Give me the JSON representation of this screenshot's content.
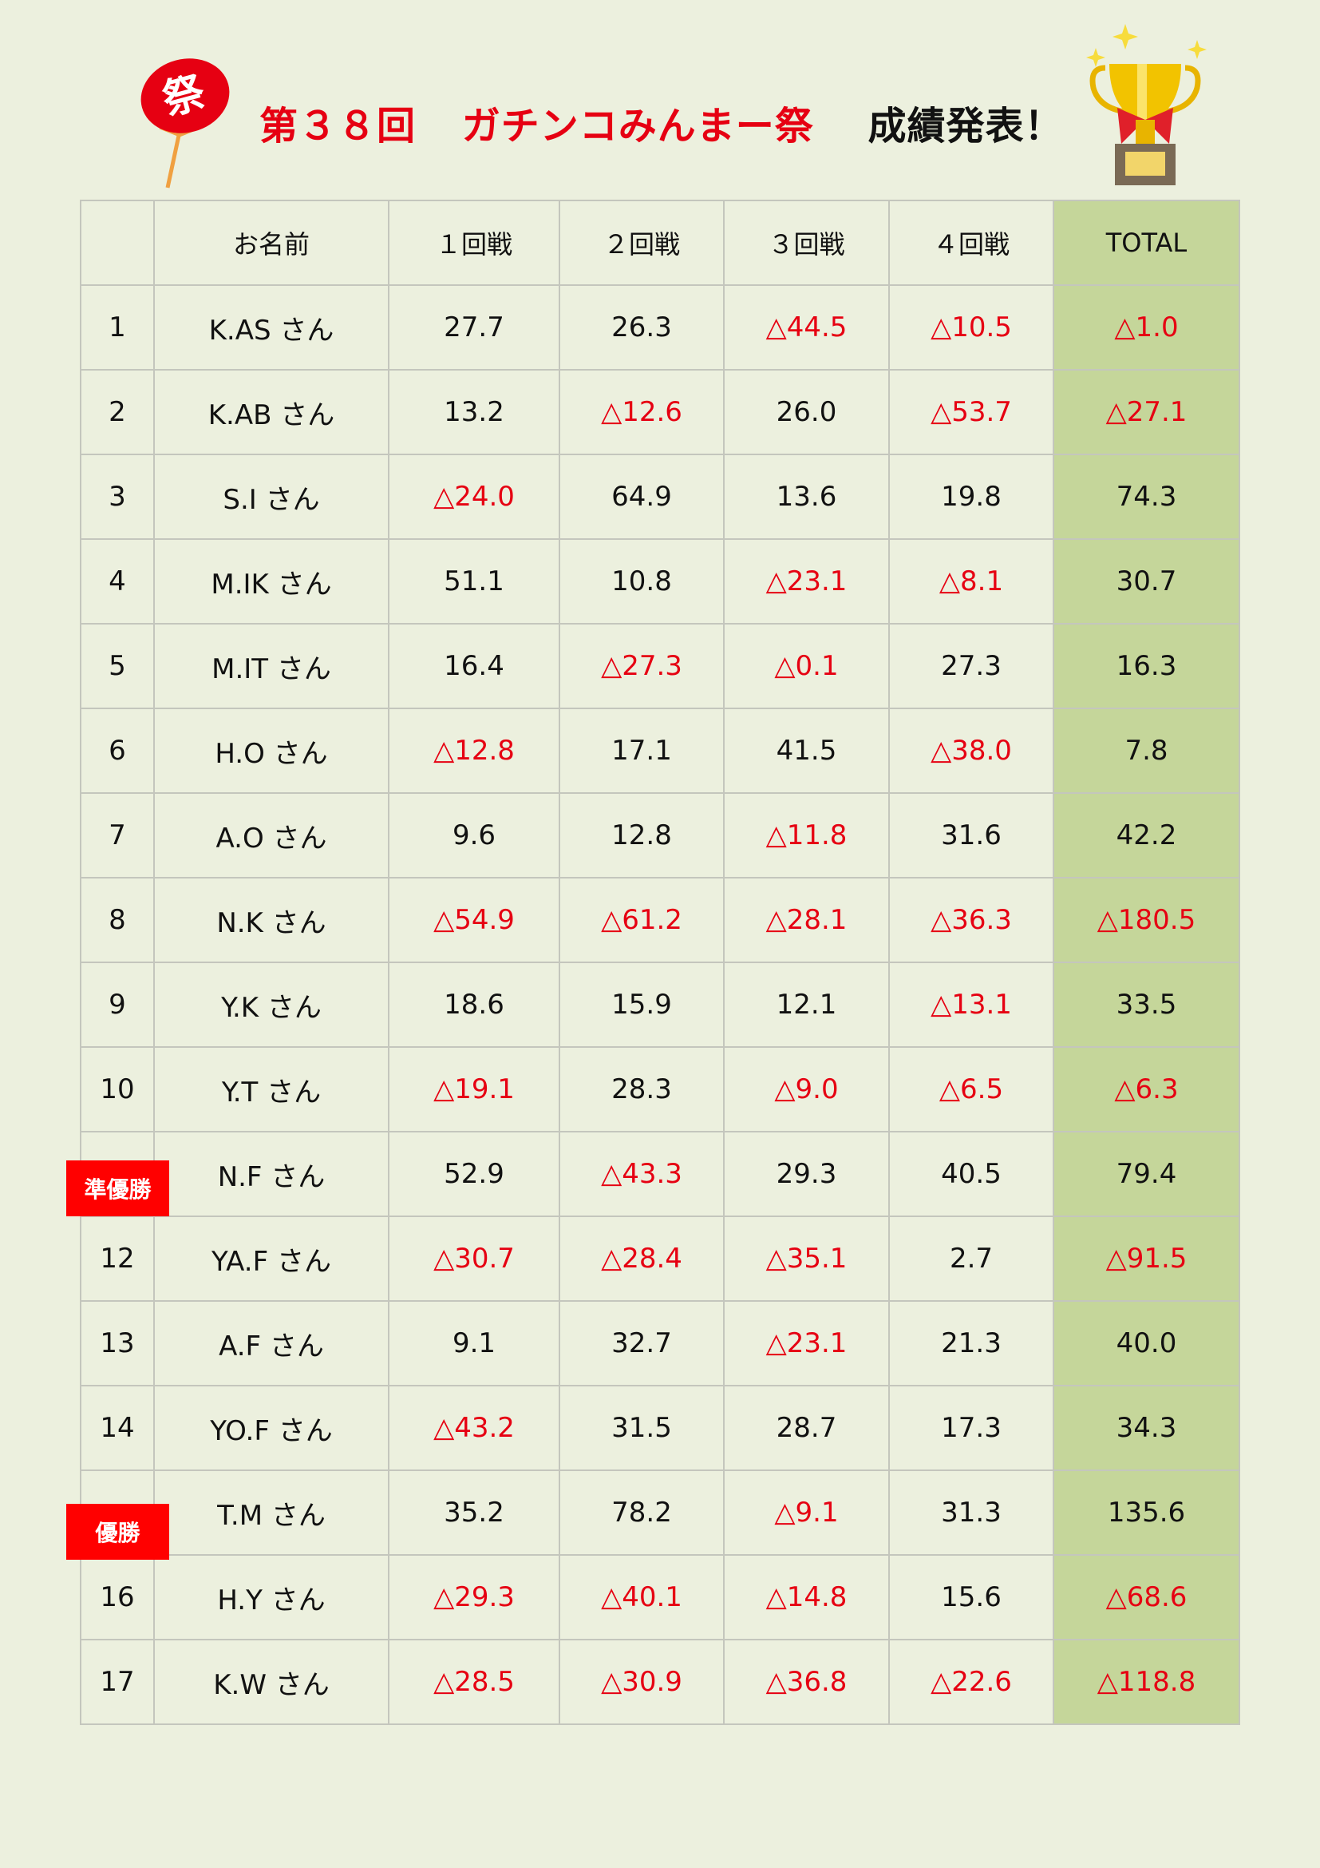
{
  "header": {
    "title_red_1": "第３８回",
    "title_red_2": "ガチンコみんまー祭",
    "title_black": "成績発表！",
    "fan_text": "祭",
    "accent_color": "#e60012",
    "total_column_color": "#c5d69a"
  },
  "table": {
    "columns": [
      "",
      "お名前",
      "１回戦",
      "２回戦",
      "３回戦",
      "４回戦",
      "TOTAL"
    ],
    "rows": [
      [
        "1",
        "K.AS さん",
        "27.7",
        "26.3",
        "△44.5",
        "△10.5",
        "△1.0"
      ],
      [
        "2",
        "K.AB さん",
        "13.2",
        "△12.6",
        "26.0",
        "△53.7",
        "△27.1"
      ],
      [
        "3",
        "S.I さん",
        "△24.0",
        "64.9",
        "13.6",
        "19.8",
        "74.3"
      ],
      [
        "4",
        "M.IK さん",
        "51.1",
        "10.8",
        "△23.1",
        "△8.1",
        "30.7"
      ],
      [
        "5",
        "M.IT さん",
        "16.4",
        "△27.3",
        "△0.1",
        "27.3",
        "16.3"
      ],
      [
        "6",
        "H.O さん",
        "△12.8",
        "17.1",
        "41.5",
        "△38.0",
        "7.8"
      ],
      [
        "7",
        "A.O さん",
        "9.6",
        "12.8",
        "△11.8",
        "31.6",
        "42.2"
      ],
      [
        "8",
        "N.K さん",
        "△54.9",
        "△61.2",
        "△28.1",
        "△36.3",
        "△180.5"
      ],
      [
        "9",
        "Y.K さん",
        "18.6",
        "15.9",
        "12.1",
        "△13.1",
        "33.5"
      ],
      [
        "10",
        "Y.T さん",
        "△19.1",
        "28.3",
        "△9.0",
        "△6.5",
        "△6.3"
      ],
      [
        "",
        "N.F さん",
        "52.9",
        "△43.3",
        "29.3",
        "40.5",
        "79.4"
      ],
      [
        "12",
        "YA.F さん",
        "△30.7",
        "△28.4",
        "△35.1",
        "2.7",
        "△91.5"
      ],
      [
        "13",
        "A.F さん",
        "9.1",
        "32.7",
        "△23.1",
        "21.3",
        "40.0"
      ],
      [
        "14",
        "YO.F さん",
        "△43.2",
        "31.5",
        "28.7",
        "17.3",
        "34.3"
      ],
      [
        "",
        "T.M さん",
        "35.2",
        "78.2",
        "△9.1",
        "31.3",
        "135.6"
      ],
      [
        "16",
        "H.Y さん",
        "△29.3",
        "△40.1",
        "△14.8",
        "15.6",
        "△68.6"
      ],
      [
        "17",
        "K.W さん",
        "△28.5",
        "△30.9",
        "△36.8",
        "△22.6",
        "△118.8"
      ]
    ]
  },
  "badges": [
    {
      "label": "準優勝",
      "row": 10
    },
    {
      "label": "優勝",
      "row": 14
    }
  ]
}
